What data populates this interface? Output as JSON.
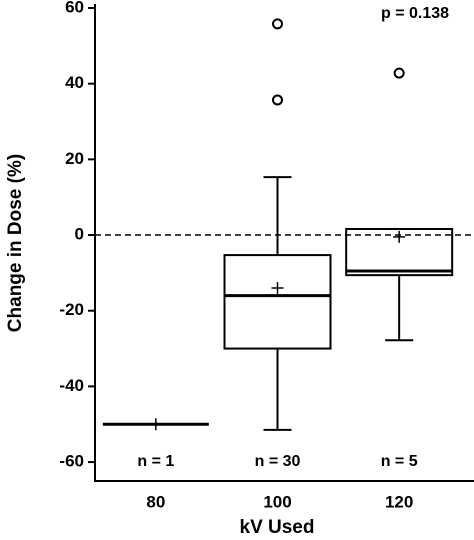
{
  "chart_data": {
    "type": "box",
    "x_label": "kV Used",
    "y_label": "Change in Dose (%)",
    "annotations": [
      "p = 0.138"
    ],
    "categories": [
      "80",
      "100",
      "120"
    ],
    "group_labels": [
      "n = 1",
      "n = 30",
      "n = 5"
    ],
    "boxes": [
      {
        "min": -50,
        "q1": -50,
        "median": -50,
        "q3": -50,
        "max": -50,
        "mean": -50,
        "outliers": []
      },
      {
        "min": -51.5,
        "q1": -30,
        "median": -16,
        "q3": -5.3,
        "max": 15.3,
        "mean": -14,
        "outliers": [
          35.7,
          55.8
        ]
      },
      {
        "min": -27.8,
        "q1": -10.6,
        "median": -9.5,
        "q3": 1.6,
        "max": 1.6,
        "mean": -0.5,
        "outliers": [
          42.8
        ]
      }
    ],
    "color": "#000000",
    "reference_line": 0,
    "ylim": [
      -65,
      60
    ],
    "yticks": [
      -60,
      -40,
      -20,
      0,
      20,
      40,
      60
    ]
  }
}
